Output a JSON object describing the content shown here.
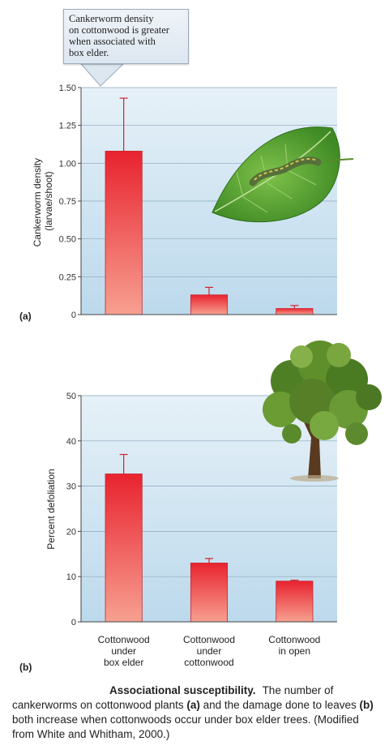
{
  "callout": {
    "lines": [
      "Cankerworm density",
      "on cottonwood is greater",
      "when associated with",
      "box elder."
    ]
  },
  "caption": {
    "title": "Associational susceptibility.",
    "text_1": "The number of cankerworms on cottonwood plants ",
    "a": "(a)",
    "text_2": " and the damage done to leaves ",
    "b": "(b)",
    "text_3": " both increase when cottonwoods occur under box elder trees. (Modified from White and Whitham, 2000.)"
  },
  "colors": {
    "plot_bg_top": "#e6f1f8",
    "plot_bg_bottom": "#bcd9ec",
    "bar_top": "#e8232f",
    "bar_bottom": "#f7a090",
    "leaf": "#4d9a2e",
    "caterpillar": "#5a7a3a",
    "tree_foliage": "#5a8a2a",
    "trunk": "#5a3a1e"
  },
  "chart_data": [
    {
      "type": "bar",
      "panel_label": "(a)",
      "ylabel_lines": [
        "Cankerworm density",
        "(larvae/shoot)"
      ],
      "categories": [
        "Cottonwood under box elder",
        "Cottonwood under cottonwood",
        "Cottonwood in open"
      ],
      "values": [
        1.08,
        0.13,
        0.04
      ],
      "error": [
        0.35,
        0.05,
        0.02
      ],
      "ylim": [
        0,
        1.5
      ],
      "yticks": [
        0,
        0.25,
        0.5,
        0.75,
        1.0,
        1.25,
        1.5
      ],
      "ytick_labels": [
        "0",
        "0.25",
        "0.50",
        "0.75",
        "1.00",
        "1.25",
        "1.50"
      ],
      "grid": true,
      "illustration": "caterpillar-on-leaf"
    },
    {
      "type": "bar",
      "panel_label": "(b)",
      "ylabel_lines": [
        "Percent defoliation"
      ],
      "categories": [
        "Cottonwood under box elder",
        "Cottonwood under cottonwood",
        "Cottonwood in open"
      ],
      "category_label_lines": [
        [
          "Cottonwood",
          "under",
          "box elder"
        ],
        [
          "Cottonwood",
          "under",
          "cottonwood"
        ],
        [
          "Cottonwood",
          "in open"
        ]
      ],
      "values": [
        32.7,
        13.0,
        9.0
      ],
      "error": [
        4.3,
        1.0,
        0.2
      ],
      "ylim": [
        0,
        50
      ],
      "yticks": [
        0,
        10,
        20,
        30,
        40,
        50
      ],
      "ytick_labels": [
        "0",
        "10",
        "20",
        "30",
        "40",
        "50"
      ],
      "grid": true,
      "illustration": "cottonwood-tree"
    }
  ]
}
